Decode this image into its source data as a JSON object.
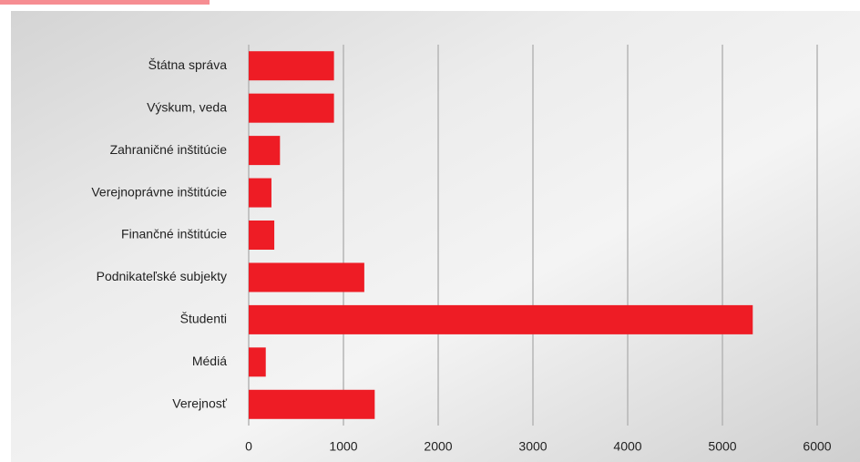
{
  "chart_data": {
    "type": "hbar",
    "categories": [
      "Štátna správa",
      "Výskum, veda",
      "Zahraničné inštitúcie",
      "Verejnoprávne inštitúcie",
      "Finančné inštitúcie",
      "Podnikateľské subjekty",
      "Študenti",
      "Médiá",
      "Verejnosť"
    ],
    "values": [
      900,
      900,
      330,
      240,
      270,
      1220,
      5320,
      180,
      1330
    ],
    "color": "#ee1c25",
    "xlim": [
      0,
      6000
    ],
    "xticks": [
      0,
      1000,
      2000,
      3000,
      4000,
      5000,
      6000
    ],
    "grid": true
  }
}
